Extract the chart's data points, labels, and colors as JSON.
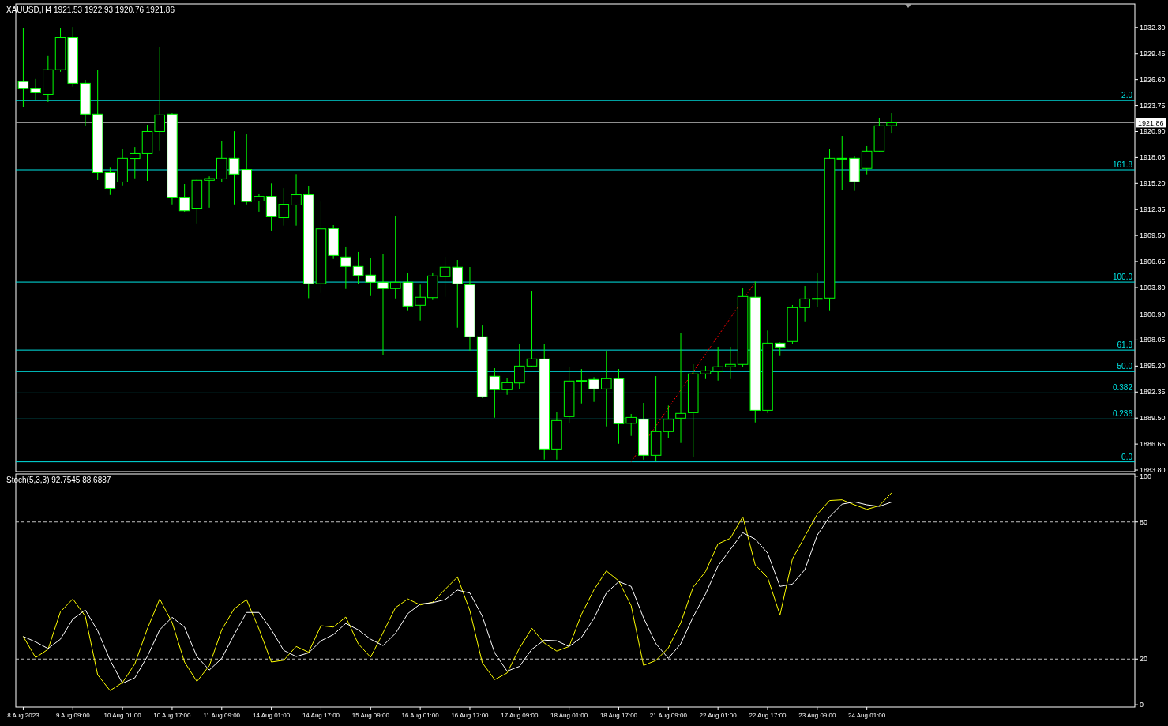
{
  "chart_data": [
    {
      "type": "candlestick",
      "title": "XAUUSD,H4 1921.53 1922.93 1920.76 1921.86",
      "color": "#00ff00",
      "categories": [
        null,
        null,
        null,
        null,
        null,
        null,
        null,
        null,
        null,
        null,
        null,
        null,
        null,
        null,
        null,
        null,
        null,
        null,
        null,
        null,
        null,
        null,
        null,
        null,
        null,
        null,
        null,
        null,
        null,
        null,
        null,
        null,
        null,
        null,
        null,
        null,
        null,
        null,
        null,
        null,
        null,
        null,
        null,
        null,
        null,
        null,
        null,
        null,
        null,
        null,
        null,
        null,
        null,
        null,
        null,
        null,
        null,
        null,
        null,
        null,
        null,
        null,
        null,
        null,
        null,
        null,
        null,
        null,
        null,
        null,
        null,
        null,
        null,
        null,
        null,
        null,
        null,
        null,
        null,
        null,
        null,
        null,
        null,
        null,
        null,
        null,
        null,
        null,
        null,
        null
      ],
      "ohlc": [
        [
          1926.38,
          1932.21,
          1923.55,
          1925.59
        ],
        [
          1925.59,
          1926.67,
          1924.34,
          1925.15
        ],
        [
          1924.97,
          1929.18,
          1924.15,
          1927.67
        ],
        [
          1927.67,
          1932.21,
          1927.45,
          1931.2
        ],
        [
          1931.2,
          1932.36,
          1925.82,
          1926.19
        ],
        [
          1926.19,
          1926.57,
          1921.47,
          1922.82
        ],
        [
          1922.82,
          1927.61,
          1915.58,
          1916.4
        ],
        [
          1916.4,
          1916.93,
          1913.95,
          1914.67
        ],
        [
          1915.36,
          1918.95,
          1914.99,
          1917.97
        ],
        [
          1917.95,
          1919.2,
          1915.77,
          1918.48
        ],
        [
          1918.48,
          1921.63,
          1915.49,
          1920.9
        ],
        [
          1920.9,
          1930.19,
          1918.8,
          1922.73
        ],
        [
          1922.82,
          1922.92,
          1912.91,
          1913.63
        ],
        [
          1913.63,
          1915.14,
          1912.12,
          1912.22
        ],
        [
          1912.5,
          1915.64,
          1910.83,
          1915.55
        ],
        [
          1915.55,
          1915.99,
          1912.56,
          1915.74
        ],
        [
          1915.71,
          1919.83,
          1915.33,
          1917.97
        ],
        [
          1917.97,
          1920.93,
          1912.91,
          1916.24
        ],
        [
          1916.74,
          1920.59,
          1912.91,
          1913.22
        ],
        [
          1913.28,
          1914.01,
          1912.12,
          1913.79
        ],
        [
          1913.79,
          1915.2,
          1910.04,
          1911.55
        ],
        [
          1911.46,
          1914.7,
          1910.58,
          1912.93
        ],
        [
          1912.85,
          1916.24,
          1910.58,
          1913.97
        ],
        [
          1913.97,
          1914.95,
          1902.64,
          1904.22
        ],
        [
          1904.22,
          1913.22,
          1903.21,
          1910.23
        ],
        [
          1910.27,
          1910.64,
          1906.94,
          1907.32
        ],
        [
          1907.15,
          1908.22,
          1903.65,
          1906.11
        ],
        [
          1906.11,
          1907.7,
          1904.17,
          1905.12
        ],
        [
          1905.16,
          1907.09,
          1902.87,
          1904.38
        ],
        [
          1904.38,
          1907.52,
          1896.38,
          1903.69
        ],
        [
          1903.69,
          1911.59,
          1902.61,
          1904.38
        ],
        [
          1904.38,
          1905.36,
          1901.23,
          1901.78
        ],
        [
          1901.87,
          1904.12,
          1900.19,
          1902.74
        ],
        [
          1902.7,
          1905.45,
          1902.44,
          1905.07
        ],
        [
          1904.99,
          1907.18,
          1902.79,
          1906.03
        ],
        [
          1906.03,
          1906.83,
          1899.41,
          1904.21
        ],
        [
          1904.12,
          1906.05,
          1896.9,
          1898.41
        ],
        [
          1898.41,
          1899.64,
          1891.7,
          1891.83
        ],
        [
          1894.08,
          1894.97,
          1889.54,
          1892.61
        ],
        [
          1892.61,
          1893.93,
          1892.05,
          1893.38
        ],
        [
          1893.35,
          1897.57,
          1892.66,
          1895.2
        ],
        [
          1895.2,
          1903.45,
          1895.08,
          1895.98
        ],
        [
          1895.98,
          1897.65,
          1884.95,
          1886.11
        ],
        [
          1886.11,
          1890.12,
          1884.95,
          1889.23
        ],
        [
          1889.66,
          1895.14,
          1888.93,
          1893.56
        ],
        [
          1893.61,
          1894.88,
          1891.1,
          1893.61
        ],
        [
          1893.73,
          1893.99,
          1891.27,
          1892.69
        ],
        [
          1892.69,
          1896.87,
          1888.59,
          1893.82
        ],
        [
          1893.82,
          1894.88,
          1886.68,
          1888.88
        ],
        [
          1888.93,
          1889.95,
          1887.55,
          1889.57
        ],
        [
          1889.37,
          1891.16,
          1884.95,
          1885.42
        ],
        [
          1885.42,
          1894.1,
          1884.78,
          1888.02
        ],
        [
          1888.02,
          1890.87,
          1887.29,
          1889.37
        ],
        [
          1889.49,
          1898.78,
          1886.77,
          1890.01
        ],
        [
          1890.09,
          1895.4,
          1885.21,
          1894.34
        ],
        [
          1894.34,
          1895.23,
          1893.78,
          1894.68
        ],
        [
          1894.62,
          1897.31,
          1893.61,
          1895.12
        ],
        [
          1895.12,
          1897.31,
          1893.78,
          1895.38
        ],
        [
          1895.38,
          1903.71,
          1895.08,
          1902.82
        ],
        [
          1902.74,
          1904.45,
          1889.02,
          1890.35
        ],
        [
          1890.35,
          1899.1,
          1890.06,
          1897.71
        ],
        [
          1897.71,
          1897.8,
          1896.29,
          1897.28
        ],
        [
          1897.89,
          1901.9,
          1897.59,
          1901.61
        ],
        [
          1901.61,
          1903.97,
          1900.1,
          1902.56
        ],
        [
          1902.61,
          1905.45,
          1901.66,
          1902.61
        ],
        [
          1902.65,
          1918.95,
          1901.23,
          1917.97
        ],
        [
          1917.97,
          1920.42,
          1914.48,
          1917.97
        ],
        [
          1917.97,
          1918.17,
          1914.39,
          1915.38
        ],
        [
          1916.85,
          1919.3,
          1916.21,
          1918.75
        ],
        [
          1918.75,
          1922.41,
          1918.7,
          1921.52
        ],
        [
          1921.53,
          1922.93,
          1920.76,
          1921.86
        ],
        null,
        null,
        null,
        null,
        null,
        null,
        null,
        null,
        null,
        null,
        null,
        null,
        null,
        null,
        null,
        null,
        null,
        null,
        null
      ],
      "series": [
        {
          "type": "line",
          "color": "#ff0000",
          "line_style": "dotted",
          "values": [
            null,
            null,
            null,
            null,
            null,
            null,
            null,
            null,
            null,
            null,
            null,
            null,
            null,
            null,
            null,
            null,
            null,
            null,
            null,
            null,
            null,
            null,
            null,
            null,
            null,
            null,
            null,
            null,
            null,
            null,
            null,
            null,
            null,
            null,
            null,
            null,
            null,
            null,
            null,
            null,
            null,
            null,
            null,
            null,
            null,
            null,
            null,
            null,
            null,
            1884.7,
            null,
            null,
            null,
            null,
            null,
            null,
            null,
            null,
            null,
            1904.4,
            null,
            null,
            null,
            null,
            null,
            null,
            null,
            null,
            null,
            null,
            null,
            null,
            null,
            null,
            null,
            null,
            null,
            null,
            null,
            null,
            null,
            null,
            null,
            null,
            null,
            null,
            null,
            null,
            null,
            null
          ]
        }
      ],
      "ylim": [
        1883.63,
        1934.88
      ],
      "yticks": [
        {
          "value": 1883.8,
          "label": "1883.80"
        },
        {
          "value": 1886.65,
          "label": "1886.65"
        },
        {
          "value": 1889.5,
          "label": "1889.50"
        },
        {
          "value": 1892.35,
          "label": "1892.35"
        },
        {
          "value": 1895.2,
          "label": "1895.20"
        },
        {
          "value": 1898.05,
          "label": "1898.05"
        },
        {
          "value": 1900.9,
          "label": "1900.90"
        },
        {
          "value": 1903.8,
          "label": "1903.80"
        },
        {
          "value": 1906.65,
          "label": "1906.65"
        },
        {
          "value": 1909.5,
          "label": "1909.50"
        },
        {
          "value": 1912.35,
          "label": "1912.35"
        },
        {
          "value": 1915.2,
          "label": "1915.20"
        },
        {
          "value": 1918.05,
          "label": "1918.05"
        },
        {
          "value": 1920.9,
          "label": "1920.90"
        },
        {
          "value": 1923.75,
          "label": "1923.75"
        },
        {
          "value": 1926.6,
          "label": "1926.60"
        },
        {
          "value": 1929.45,
          "label": "1929.45"
        },
        {
          "value": 1932.3,
          "label": "1932.30"
        }
      ],
      "ref_lines": [
        {
          "axis": "y",
          "value": 1921.86,
          "label": "1921.86",
          "color": "#a0a0a0"
        },
        {
          "axis": "y",
          "value": 1924.3,
          "color": "#00e5e5"
        },
        {
          "axis": "y",
          "value": 1916.7,
          "color": "#00e5e5"
        },
        {
          "axis": "y",
          "value": 1904.4,
          "color": "#00e5e5"
        },
        {
          "axis": "y",
          "value": 1896.95,
          "color": "#00e5e5"
        },
        {
          "axis": "y",
          "value": 1894.6,
          "color": "#00e5e5"
        },
        {
          "axis": "y",
          "value": 1892.25,
          "color": "#00e5e5"
        },
        {
          "axis": "y",
          "value": 1889.4,
          "color": "#00e5e5"
        },
        {
          "axis": "y",
          "value": 1884.7,
          "color": "#00e5e5"
        }
      ],
      "annotations": [
        {
          "text": "2.0",
          "y": 1924.3
        },
        {
          "text": "161.8",
          "y": 1916.7
        },
        {
          "text": "100.0",
          "y": 1904.4
        },
        {
          "text": "61.8",
          "y": 1896.95
        },
        {
          "text": "50.0",
          "y": 1894.6
        },
        {
          "text": "0.382",
          "y": 1892.25
        },
        {
          "text": "0.236",
          "y": 1889.4
        },
        {
          "text": "0.0",
          "y": 1884.7
        }
      ]
    },
    {
      "type": "line",
      "title": "Stoch(5,3,3) 92.7545 88.6887",
      "categories": [
        "8 Aug 2023",
        null,
        null,
        null,
        "9 Aug 09:00",
        null,
        null,
        null,
        "10 Aug 01:00",
        null,
        null,
        null,
        "10 Aug 17:00",
        null,
        null,
        null,
        "11 Aug 09:00",
        null,
        null,
        null,
        "14 Aug 01:00",
        null,
        null,
        null,
        "14 Aug 17:00",
        null,
        null,
        null,
        "15 Aug 09:00",
        null,
        null,
        null,
        "16 Aug 01:00",
        null,
        null,
        null,
        "16 Aug 17:00",
        null,
        null,
        null,
        "17 Aug 09:00",
        null,
        null,
        null,
        "18 Aug 01:00",
        null,
        null,
        null,
        "18 Aug 17:00",
        null,
        null,
        null,
        "21 Aug 09:00",
        null,
        null,
        null,
        "22 Aug 01:00",
        null,
        null,
        null,
        "22 Aug 17:00",
        null,
        null,
        null,
        "23 Aug 09:00",
        null,
        null,
        null,
        "24 Aug 01:00",
        null,
        null,
        null,
        null,
        null,
        null,
        null,
        null,
        null,
        null,
        null,
        null,
        null,
        null,
        null,
        null,
        null,
        null,
        null,
        null,
        null
      ],
      "series": [
        {
          "color": "#ffff00",
          "values": [
            29.9,
            20.6,
            24.3,
            40.7,
            46.3,
            38.8,
            13.1,
            6.2,
            9.7,
            17.9,
            33.2,
            46.3,
            36.0,
            18.7,
            10.2,
            17.1,
            32.8,
            42.0,
            46.0,
            33.2,
            18.7,
            19.5,
            25.5,
            23.0,
            34.6,
            34.0,
            38.4,
            26.7,
            20.8,
            31.5,
            42.5,
            46.3,
            43.7,
            44.9,
            50.5,
            55.9,
            41.2,
            18.4,
            11.0,
            13.9,
            24.8,
            33.5,
            27.0,
            23.5,
            25.5,
            39.6,
            50.3,
            58.6,
            54.2,
            43.4,
            17.2,
            19.4,
            24.9,
            35.9,
            51.5,
            58.3,
            70.4,
            72.9,
            82.3,
            61.2,
            55.7,
            39.3,
            63.8,
            73.7,
            83.4,
            89.4,
            89.7,
            87.5,
            85.5,
            87.1,
            92.8,
            null,
            null,
            null,
            null,
            null,
            null,
            null,
            null,
            null,
            null,
            null,
            null,
            null,
            null,
            null,
            null,
            null,
            null,
            null
          ]
        },
        {
          "color": "#ffffff",
          "values": [
            29.9,
            27.5,
            24.6,
            28.7,
            37.5,
            41.5,
            32.4,
            19.5,
            9.4,
            11.8,
            21.1,
            32.8,
            38.3,
            34.0,
            21.1,
            15.2,
            20.3,
            30.7,
            40.4,
            40.4,
            32.8,
            23.8,
            21.1,
            22.7,
            28.0,
            30.7,
            35.6,
            32.8,
            28.7,
            25.9,
            31.2,
            39.9,
            44.1,
            44.7,
            46.0,
            50.2,
            48.9,
            38.8,
            22.7,
            14.7,
            16.8,
            24.3,
            28.3,
            28.0,
            25.5,
            29.5,
            37.8,
            48.9,
            53.9,
            51.8,
            38.0,
            26.7,
            20.3,
            26.7,
            38.5,
            48.5,
            60.7,
            68.0,
            75.3,
            72.5,
            66.4,
            51.8,
            52.8,
            59.1,
            74.2,
            82.3,
            87.8,
            88.8,
            87.5,
            86.8,
            88.7,
            null,
            null,
            null,
            null,
            null,
            null,
            null,
            null,
            null,
            null,
            null,
            null,
            null,
            null,
            null,
            null,
            null,
            null,
            null
          ]
        }
      ],
      "ylim": [
        -1,
        101
      ],
      "yticks": [
        0,
        20,
        80,
        100
      ],
      "ref_lines": [
        {
          "axis": "y",
          "value": 80,
          "color": "#c0c0c0",
          "line_style": "dashed"
        },
        {
          "axis": "y",
          "value": 20,
          "color": "#c0c0c0",
          "line_style": "dashed"
        }
      ]
    }
  ]
}
